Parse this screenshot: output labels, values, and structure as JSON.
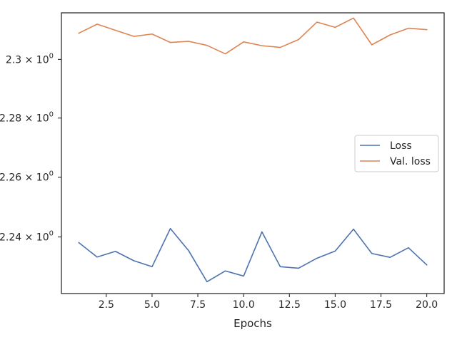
{
  "chart_data": {
    "type": "line",
    "title": "",
    "xlabel": "Epochs",
    "ylabel": "",
    "x": [
      1,
      2,
      3,
      4,
      5,
      6,
      7,
      8,
      9,
      10,
      11,
      12,
      13,
      14,
      15,
      16,
      17,
      18,
      19,
      20
    ],
    "series": [
      {
        "name": "Loss",
        "color": "#4c72b0",
        "values": [
          2.2381,
          2.2333,
          2.2352,
          2.2321,
          2.2301,
          2.2428,
          2.2354,
          2.2251,
          2.2287,
          2.227,
          2.2417,
          2.2301,
          2.2296,
          2.2329,
          2.2353,
          2.2426,
          2.2345,
          2.2332,
          2.2364,
          2.2307
        ]
      },
      {
        "name": "Val. loss",
        "color": "#dd8452",
        "values": [
          2.309,
          2.3121,
          2.31,
          2.3079,
          2.3087,
          2.3058,
          2.3062,
          2.3048,
          2.3019,
          2.306,
          2.3047,
          2.3041,
          2.3068,
          2.3128,
          2.311,
          2.3142,
          2.305,
          2.3084,
          2.3107,
          2.3102
        ]
      }
    ],
    "xlim": [
      0.05,
      20.95
    ],
    "ylim": [
      2.2212,
      2.316
    ],
    "yscale": "log",
    "xticks": [
      2.5,
      5.0,
      7.5,
      10.0,
      12.5,
      15.0,
      17.5,
      20.0
    ],
    "xtick_labels": [
      "2.5",
      "5.0",
      "7.5",
      "10.0",
      "12.5",
      "15.0",
      "17.5",
      "20.0"
    ],
    "yticks": [
      2.24,
      2.26,
      2.28,
      2.3
    ],
    "ytick_labels": [
      "2.24",
      "2.26",
      "2.28",
      "2.3"
    ],
    "ytick_exponent": "0",
    "grid": false,
    "legend_position": "center-right"
  }
}
